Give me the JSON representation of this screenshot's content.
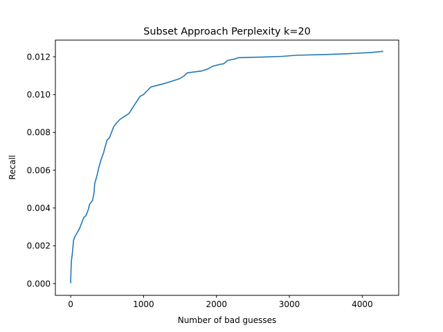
{
  "chart_data": {
    "type": "line",
    "title": "Subset Approach Perplexity k=20",
    "xlabel": "Number of bad guesses",
    "ylabel": "Recall",
    "xlim": [
      -210,
      4500
    ],
    "ylim": [
      -0.00062,
      0.01288
    ],
    "x_ticks": [
      0,
      1000,
      2000,
      3000,
      4000
    ],
    "x_tick_labels": [
      "0",
      "1000",
      "2000",
      "3000",
      "4000"
    ],
    "y_ticks": [
      0.0,
      0.002,
      0.004,
      0.006,
      0.008,
      0.01,
      0.012
    ],
    "y_tick_labels": [
      "0.000",
      "0.002",
      "0.004",
      "0.006",
      "0.008",
      "0.010",
      "0.012"
    ],
    "grid": false,
    "legend": "none",
    "series": [
      {
        "color": "#1f77b4",
        "points": [
          [
            0,
            5e-05
          ],
          [
            5,
            0.0008
          ],
          [
            10,
            0.0012
          ],
          [
            20,
            0.0015
          ],
          [
            30,
            0.0019
          ],
          [
            40,
            0.0023
          ],
          [
            60,
            0.0025
          ],
          [
            90,
            0.0027
          ],
          [
            120,
            0.0029
          ],
          [
            150,
            0.0032
          ],
          [
            180,
            0.0035
          ],
          [
            210,
            0.0036
          ],
          [
            240,
            0.0039
          ],
          [
            260,
            0.0042
          ],
          [
            300,
            0.0044
          ],
          [
            320,
            0.0048
          ],
          [
            330,
            0.0053
          ],
          [
            360,
            0.0057
          ],
          [
            390,
            0.0062
          ],
          [
            420,
            0.0066
          ],
          [
            450,
            0.0069
          ],
          [
            470,
            0.0072
          ],
          [
            500,
            0.0076
          ],
          [
            530,
            0.0077
          ],
          [
            560,
            0.008
          ],
          [
            590,
            0.0083
          ],
          [
            630,
            0.0085
          ],
          [
            680,
            0.0087
          ],
          [
            720,
            0.0088
          ],
          [
            760,
            0.0089
          ],
          [
            800,
            0.009
          ],
          [
            850,
            0.0093
          ],
          [
            900,
            0.0096
          ],
          [
            950,
            0.0099
          ],
          [
            1000,
            0.01
          ],
          [
            1050,
            0.0102
          ],
          [
            1100,
            0.0104
          ],
          [
            1200,
            0.0105
          ],
          [
            1300,
            0.0106
          ],
          [
            1400,
            0.01072
          ],
          [
            1500,
            0.01085
          ],
          [
            1560,
            0.011
          ],
          [
            1600,
            0.01115
          ],
          [
            1700,
            0.0112
          ],
          [
            1800,
            0.01125
          ],
          [
            1880,
            0.01135
          ],
          [
            1950,
            0.0115
          ],
          [
            2050,
            0.0116
          ],
          [
            2100,
            0.01163
          ],
          [
            2150,
            0.0118
          ],
          [
            2250,
            0.01188
          ],
          [
            2300,
            0.01195
          ],
          [
            2600,
            0.01198
          ],
          [
            2900,
            0.01202
          ],
          [
            3100,
            0.01208
          ],
          [
            3500,
            0.01212
          ],
          [
            3800,
            0.01216
          ],
          [
            4100,
            0.01222
          ],
          [
            4280,
            0.01228
          ]
        ]
      }
    ]
  }
}
